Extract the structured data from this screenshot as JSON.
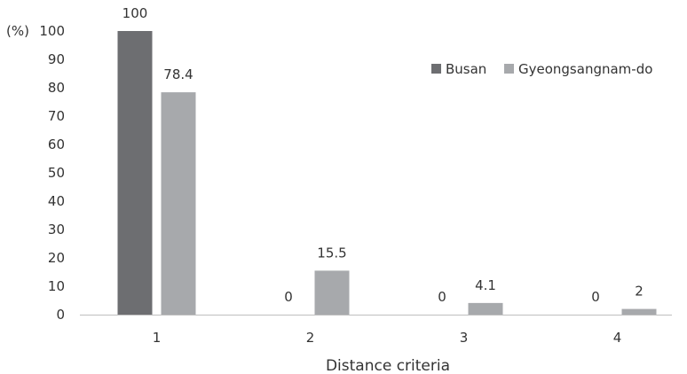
{
  "chart_data": {
    "type": "bar",
    "categories": [
      "1",
      "2",
      "3",
      "4"
    ],
    "series": [
      {
        "name": "Busan",
        "values": [
          100,
          0,
          0,
          0
        ],
        "color": "#6d6e71"
      },
      {
        "name": "Gyeongsangnam-do",
        "values": [
          78.4,
          15.5,
          4.1,
          2
        ],
        "color": "#a7a9ac"
      }
    ],
    "data_labels": [
      [
        "100",
        "0",
        "0",
        "0"
      ],
      [
        "78.4",
        "15.5",
        "4.1",
        "2"
      ]
    ],
    "xlabel": "Distance criteria",
    "ylabel": "(%)",
    "ylim": [
      0,
      100
    ],
    "yticks": [
      "0",
      "10",
      "20",
      "30",
      "40",
      "50",
      "60",
      "70",
      "80",
      "90",
      "100"
    ],
    "grid": false,
    "legend_position": "top-right"
  }
}
